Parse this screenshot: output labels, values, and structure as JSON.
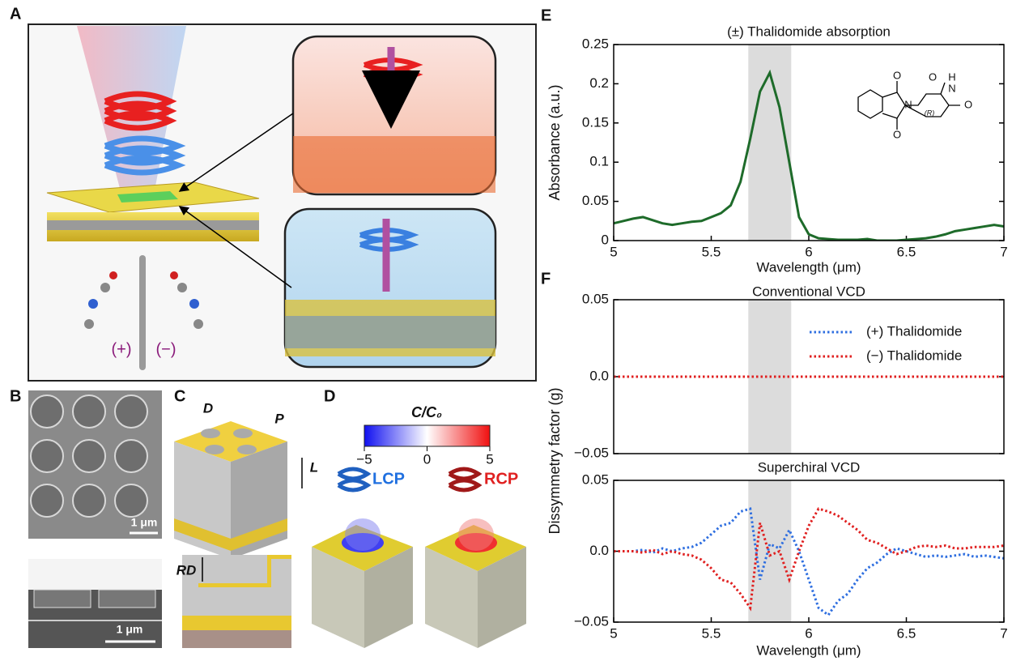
{
  "panels": {
    "A": {
      "letter": "A",
      "plus": "(+)",
      "minus": "(−)"
    },
    "B": {
      "letter": "B",
      "scale_top": "1 μm",
      "scale_bottom": "1 μm"
    },
    "C": {
      "letter": "C",
      "d": "D",
      "p": "P",
      "l": "L",
      "rd": "RD"
    },
    "D": {
      "letter": "D",
      "colorbar_title": "C/C₀",
      "colorbar_lim": [
        -5,
        5
      ],
      "colorbar_ticks": [
        {
          "value": -5,
          "label": "−5"
        },
        0,
        5
      ],
      "lcp": "LCP",
      "rcp": "RCP"
    },
    "E": {
      "letter": "E",
      "molecule_labels": [
        "O",
        "N",
        "O",
        "H",
        "N",
        "(R)",
        "O",
        "O"
      ]
    },
    "F": {
      "letter": "F"
    }
  },
  "chart_data": [
    {
      "type": "line",
      "title": "(±) Thalidomide absorption",
      "xlabel": "Wavelength (μm)",
      "ylabel": "Absorbance (a.u.)",
      "xlim": [
        5,
        7
      ],
      "xticks": [
        5,
        5.5,
        6,
        6.5,
        7
      ],
      "ylim": [
        0,
        0.25
      ],
      "yticks": [
        0,
        0.05,
        0.1,
        0.15,
        0.2,
        0.25
      ],
      "shade": [
        5.69,
        5.91
      ],
      "x": [
        5.0,
        5.05,
        5.1,
        5.15,
        5.2,
        5.25,
        5.3,
        5.35,
        5.4,
        5.45,
        5.5,
        5.55,
        5.6,
        5.65,
        5.7,
        5.75,
        5.8,
        5.85,
        5.9,
        5.95,
        6.0,
        6.05,
        6.1,
        6.15,
        6.2,
        6.25,
        6.3,
        6.35,
        6.4,
        6.45,
        6.5,
        6.55,
        6.6,
        6.65,
        6.7,
        6.75,
        6.8,
        6.85,
        6.9,
        6.95,
        7.0
      ],
      "series": [
        {
          "color": "#1e6b2a",
          "values": [
            0.022,
            0.025,
            0.028,
            0.03,
            0.026,
            0.022,
            0.02,
            0.022,
            0.024,
            0.025,
            0.03,
            0.035,
            0.045,
            0.075,
            0.13,
            0.19,
            0.214,
            0.17,
            0.1,
            0.03,
            0.008,
            0.003,
            0.002,
            0.001,
            0.001,
            0.001,
            0.002,
            0.0,
            0.0,
            0.0,
            0.001,
            0.002,
            0.003,
            0.005,
            0.008,
            0.012,
            0.014,
            0.016,
            0.018,
            0.02,
            0.018
          ]
        }
      ]
    },
    {
      "type": "line",
      "title": "Conventional VCD",
      "ylabel": "Dissymmetry factor (g)",
      "legend": "upper right",
      "xlim": [
        5,
        7
      ],
      "ylim": [
        -0.05,
        0.05
      ],
      "yticks": [
        {
          "value": -0.05,
          "label": "−0.05"
        },
        {
          "value": 0,
          "label": "0.0"
        },
        0.05
      ],
      "shade": [
        5.69,
        5.91
      ],
      "x": [
        5,
        7
      ],
      "series": [
        {
          "name": "(+) Thalidomide",
          "color": "#2f6fe0",
          "values": [
            0,
            0
          ]
        },
        {
          "name": "(−) Thalidomide",
          "color": "#e02020",
          "values": [
            0,
            0
          ]
        }
      ]
    },
    {
      "type": "line",
      "title": "Superchiral VCD",
      "xlabel": "Wavelength (μm)",
      "xlim": [
        5,
        7
      ],
      "xticks": [
        5,
        5.5,
        6,
        6.5,
        7
      ],
      "ylim": [
        -0.05,
        0.05
      ],
      "yticks": [
        {
          "value": -0.05,
          "label": "−0.05"
        },
        {
          "value": 0,
          "label": "0.0"
        },
        0.05
      ],
      "shade": [
        5.69,
        5.91
      ],
      "x": [
        5.0,
        5.05,
        5.1,
        5.15,
        5.2,
        5.25,
        5.3,
        5.35,
        5.4,
        5.45,
        5.5,
        5.55,
        5.6,
        5.65,
        5.7,
        5.75,
        5.8,
        5.85,
        5.9,
        5.95,
        6.0,
        6.05,
        6.1,
        6.15,
        6.2,
        6.25,
        6.3,
        6.35,
        6.4,
        6.45,
        6.5,
        6.55,
        6.6,
        6.65,
        6.7,
        6.75,
        6.8,
        6.85,
        6.9,
        6.95,
        7.0
      ],
      "series": [
        {
          "color": "#2f6fe0",
          "values": [
            0,
            0,
            0,
            0.001,
            -0.001,
            0.002,
            0,
            0.002,
            0.003,
            0.006,
            0.012,
            0.018,
            0.02,
            0.028,
            0.03,
            -0.02,
            0.005,
            0.002,
            0.015,
            0,
            -0.02,
            -0.04,
            -0.045,
            -0.035,
            -0.03,
            -0.02,
            -0.012,
            -0.008,
            -0.002,
            0.002,
            0.0,
            -0.002,
            -0.004,
            -0.003,
            -0.004,
            -0.003,
            -0.002,
            -0.004,
            -0.003,
            -0.004,
            -0.005
          ]
        },
        {
          "color": "#e02020",
          "values": [
            0,
            0,
            0,
            -0.001,
            0.001,
            -0.002,
            0,
            -0.002,
            -0.003,
            -0.006,
            -0.012,
            -0.02,
            -0.022,
            -0.03,
            -0.04,
            0.02,
            -0.003,
            0.0,
            -0.02,
            0.0,
            0.018,
            0.03,
            0.028,
            0.025,
            0.02,
            0.015,
            0.008,
            0.006,
            0.002,
            -0.002,
            0.0,
            0.003,
            0.004,
            0.003,
            0.004,
            0.002,
            0.002,
            0.003,
            0.003,
            0.003,
            0.004
          ]
        }
      ]
    }
  ]
}
